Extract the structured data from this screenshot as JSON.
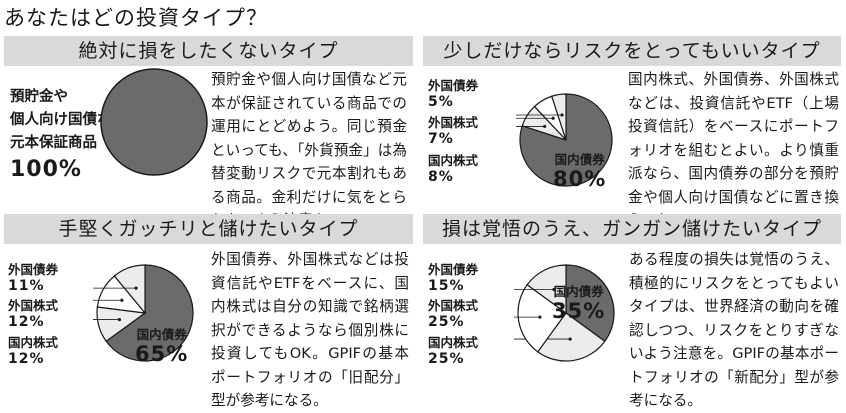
{
  "page": {
    "title": "あなたはどの投資タイプ？"
  },
  "colors": {
    "dark": "#6b6b6b",
    "light": "#ececec",
    "white": "#ffffff",
    "stroke": "#1a1a1a",
    "bar": "#d9d9d9"
  },
  "panels": [
    {
      "heading": "絶対に損をしたくないタイプ",
      "description": "預貯金や個人向け国債など元本が保証されている商品での運用にとどめよう。同じ預金といっても、「外貨預金」は為替変動リスクで元本割れもある商品。金利だけに気をとられないよう注意を。",
      "labels": [
        {
          "name_lines": [
            "預貯金や",
            "個人向け国債などの",
            "元本保証商品"
          ],
          "value": "100%"
        }
      ]
    },
    {
      "heading": "少しだけならリスクをとってもいいタイプ",
      "description": "国内株式、外国債券、外国株式などは、投資信託やETF（上場投資信託）をベースにポートフォリオを組むとよい。より慎重派なら、国内債券の部分を預貯金や個人向け国債などに置き換えても。",
      "labels": [
        {
          "name": "外国債券",
          "value": "5%"
        },
        {
          "name": "外国株式",
          "value": "7%"
        },
        {
          "name": "国内株式",
          "value": "8%"
        },
        {
          "name": "国内債券",
          "value": "80%"
        }
      ]
    },
    {
      "heading": "手堅くガッチリと儲けたいタイプ",
      "description": "外国債券、外国株式などは投資信託やETFをベースに、国内株式は自分の知識で銘柄選択ができるようなら個別株に投資してもOK。GPIFの基本ポートフォリオの「旧配分」型が参考になる。",
      "labels": [
        {
          "name": "外国債券",
          "value": "11%"
        },
        {
          "name": "外国株式",
          "value": "12%"
        },
        {
          "name": "国内株式",
          "value": "12%"
        },
        {
          "name": "国内債券",
          "value": "65%"
        }
      ]
    },
    {
      "heading": "損は覚悟のうえ、ガンガン儲けたいタイプ",
      "description": "ある程度の損失は覚悟のうえ、積極的にリスクをとってもよいタイプは、世界経済の動向を確認しつつ、リスクをとりすぎないよう注意を。GPIFの基本ポートフォリオの「新配分」型が参考になる。",
      "labels": [
        {
          "name": "外国債券",
          "value": "15%"
        },
        {
          "name": "外国株式",
          "value": "25%"
        },
        {
          "name": "国内株式",
          "value": "25%"
        },
        {
          "name": "国内債券",
          "value": "35%"
        }
      ]
    }
  ],
  "chart_data": [
    {
      "type": "pie",
      "categories": [
        "預貯金や個人向け国債などの元本保証商品"
      ],
      "values": [
        100
      ]
    },
    {
      "type": "pie",
      "categories": [
        "国内債券",
        "国内株式",
        "外国株式",
        "外国債券"
      ],
      "values": [
        80,
        8,
        7,
        5
      ]
    },
    {
      "type": "pie",
      "categories": [
        "国内債券",
        "国内株式",
        "外国株式",
        "外国債券"
      ],
      "values": [
        65,
        12,
        12,
        11
      ]
    },
    {
      "type": "pie",
      "categories": [
        "国内債券",
        "国内株式",
        "外国株式",
        "外国債券"
      ],
      "values": [
        35,
        25,
        25,
        15
      ]
    }
  ]
}
